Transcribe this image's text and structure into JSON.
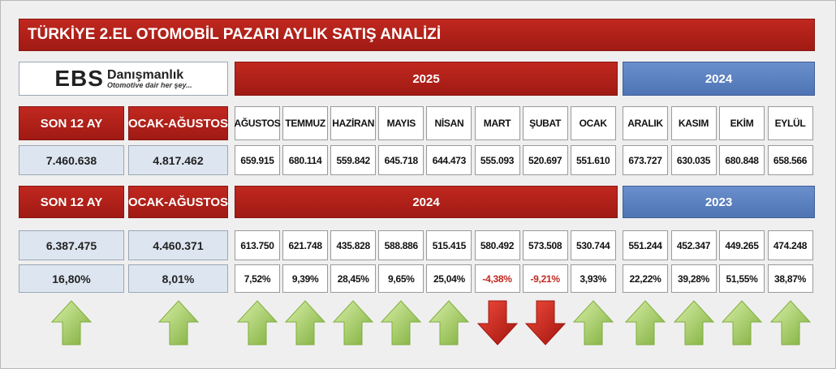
{
  "title": "TÜRKİYE 2.EL OTOMOBİL PAZARI AYLIK SATIŞ ANALİZİ",
  "logo": {
    "brand": "EBS",
    "name": "Danışmanlık",
    "tagline": "Otomotive dair her şey..."
  },
  "months": [
    "AĞUSTOS",
    "TEMMUZ",
    "HAZİRAN",
    "MAYIS",
    "NİSAN",
    "MART",
    "ŞUBAT",
    "OCAK",
    "ARALIK",
    "KASIM",
    "EKİM",
    "EYLÜL"
  ],
  "current": {
    "headers": [
      "SON 12 AY",
      "OCAK-AĞUSTOS"
    ],
    "years": [
      "2025",
      "2024"
    ],
    "totals": [
      "7.460.638",
      "4.817.462"
    ],
    "monthly": [
      "659.915",
      "680.114",
      "559.842",
      "645.718",
      "644.473",
      "555.093",
      "520.697",
      "551.610",
      "673.727",
      "630.035",
      "680.848",
      "658.566"
    ]
  },
  "previous": {
    "headers": [
      "SON 12 AY",
      "OCAK-AĞUSTOS"
    ],
    "years": [
      "2024",
      "2023"
    ],
    "totals": [
      "6.387.475",
      "4.460.371"
    ],
    "monthly": [
      "613.750",
      "621.748",
      "435.828",
      "588.886",
      "515.415",
      "580.492",
      "573.508",
      "530.744",
      "551.244",
      "452.347",
      "449.265",
      "474.248"
    ]
  },
  "change": {
    "totals": [
      "16,80%",
      "8,01%"
    ],
    "monthly": [
      "7,52%",
      "9,39%",
      "28,45%",
      "9,65%",
      "25,04%",
      "-4,38%",
      "-9,21%",
      "3,93%",
      "22,22%",
      "39,28%",
      "51,55%",
      "38,87%"
    ]
  }
}
